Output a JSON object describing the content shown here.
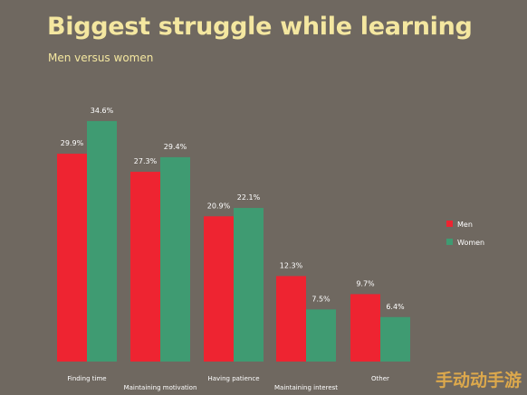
{
  "chart_data": {
    "type": "bar",
    "title": "Biggest struggle while learning",
    "subtitle": "Men versus women",
    "categories": [
      "Finding time",
      "Maintaining motivation",
      "Having patience",
      "Maintaining interest",
      "Other"
    ],
    "series": [
      {
        "name": "Men",
        "color": "#ee2431",
        "values": [
          29.9,
          27.3,
          20.9,
          12.3,
          9.7
        ],
        "labels": [
          "29.9%",
          "27.3%",
          "20.9%",
          "12.3%",
          "9.7%"
        ]
      },
      {
        "name": "Women",
        "color": "#3f9b72",
        "values": [
          34.6,
          29.4,
          22.1,
          7.5,
          6.4
        ],
        "labels": [
          "34.6%",
          "29.4%",
          "22.1%",
          "7.5%",
          "6.4%"
        ]
      }
    ],
    "ylim": [
      0,
      40
    ],
    "legend": "right",
    "grid": false,
    "xlabel": "",
    "ylabel": ""
  },
  "colors": {
    "background": "#6f6860",
    "title": "#f4e7a0",
    "text": "#ffffff",
    "men": "#ee2431",
    "women": "#3f9b72"
  },
  "watermark": "手动动手游"
}
